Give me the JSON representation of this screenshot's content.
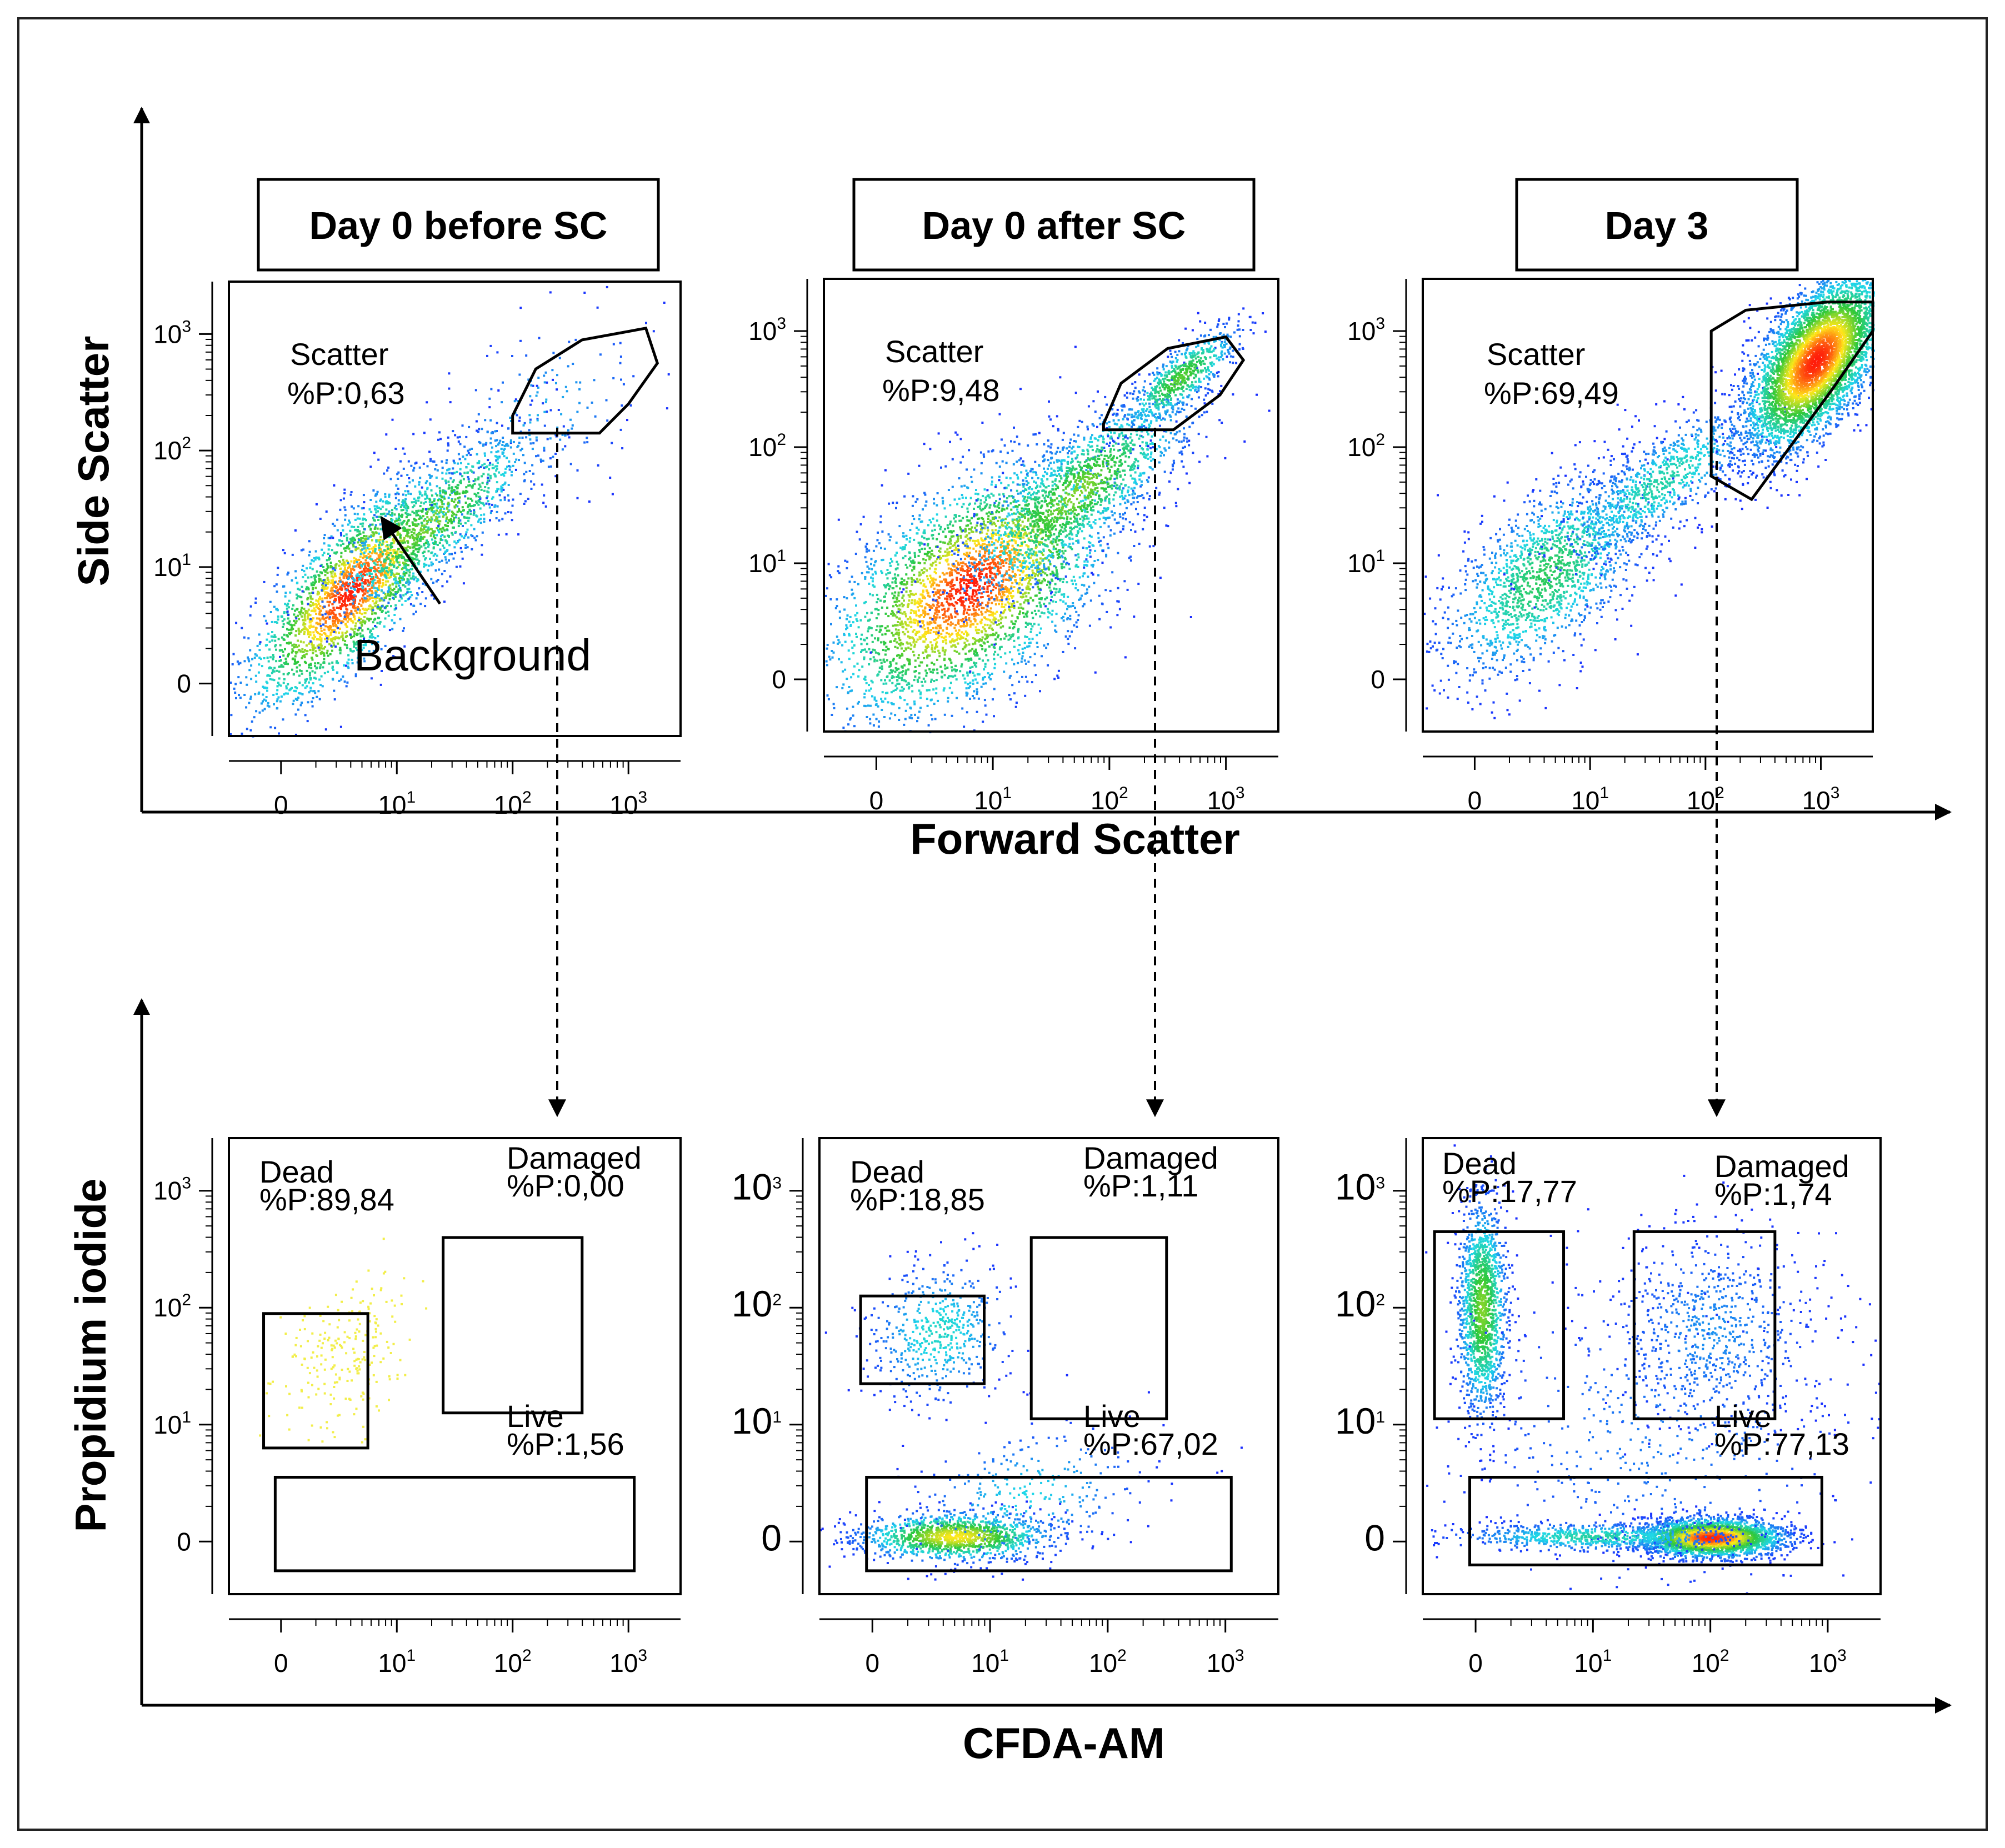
{
  "chart_data": {
    "type": "scatter",
    "kind": "flow-cytometry density dot plots",
    "colors": {
      "low": "#1a2cff",
      "mid_low": "#1fd7e8",
      "mid": "#2ec83a",
      "mid_high": "#ffe81a",
      "high": "#ff1a0a"
    },
    "tick_values": [
      "0",
      "10",
      "10",
      "10"
    ],
    "tick_exponents": [
      "",
      "1",
      "2",
      "3"
    ],
    "top_row": {
      "xlabel": "Forward Scatter",
      "ylabel": "Side Scatter",
      "panels": [
        {
          "title": "Day 0 before SC",
          "gate_label": "Scatter",
          "gate_value": "%P:0,63",
          "annotation": "Background",
          "population": [
            {
              "cx": 0.6,
              "cy": 0.8,
              "sx": 0.45,
              "sy": 0.5,
              "rho": 0.75,
              "n": 2400,
              "cmax": 1.0
            },
            {
              "cx": 1.3,
              "cy": 1.4,
              "sx": 0.45,
              "sy": 0.4,
              "rho": 0.8,
              "n": 1000,
              "cmax": 0.6
            },
            {
              "cx": 2.2,
              "cy": 2.3,
              "sx": 0.5,
              "sy": 0.45,
              "rho": 0.5,
              "n": 180,
              "cmax": 0.2
            }
          ]
        },
        {
          "title": "Day 0 after SC",
          "gate_label": "Scatter",
          "gate_value": "%P:9,48",
          "population": [
            {
              "cx": 0.8,
              "cy": 0.8,
              "sx": 0.6,
              "sy": 0.55,
              "rho": 0.55,
              "n": 3400,
              "cmax": 1.0
            },
            {
              "cx": 1.7,
              "cy": 1.6,
              "sx": 0.5,
              "sy": 0.45,
              "rho": 0.8,
              "n": 1500,
              "cmax": 0.6
            },
            {
              "cx": 2.6,
              "cy": 2.6,
              "sx": 0.25,
              "sy": 0.22,
              "rho": 0.8,
              "n": 600,
              "cmax": 0.55
            }
          ]
        },
        {
          "title": "Day 3",
          "gate_label": "Scatter",
          "gate_value": "%P:69,49",
          "population": [
            {
              "cx": 0.6,
              "cy": 0.9,
              "sx": 0.45,
              "sy": 0.45,
              "rho": 0.6,
              "n": 1600,
              "cmax": 0.45
            },
            {
              "cx": 1.6,
              "cy": 1.7,
              "sx": 0.45,
              "sy": 0.35,
              "rho": 0.8,
              "n": 900,
              "cmax": 0.35
            },
            {
              "cx": 2.95,
              "cy": 2.75,
              "sx": 0.3,
              "sy": 0.38,
              "rho": 0.6,
              "n": 5200,
              "cmax": 1.0
            }
          ]
        }
      ]
    },
    "bottom_row": {
      "xlabel": "CFDA-AM",
      "ylabel": "Propidium iodide",
      "panels": [
        {
          "gates": [
            {
              "name": "Dead",
              "value": "%P:89,84"
            },
            {
              "name": "Damaged",
              "value": "%P:0,00"
            },
            {
              "name": "Live",
              "value": "%P:1,56"
            }
          ],
          "population": [
            {
              "cx": 0.55,
              "cy": 1.6,
              "sx": 0.3,
              "sy": 0.35,
              "rho": 0.4,
              "n": 230,
              "cmax": 0.62,
              "fixed_color": "#f2ee4a"
            }
          ]
        },
        {
          "gates": [
            {
              "name": "Dead",
              "value": "%P:18,85"
            },
            {
              "name": "Damaged",
              "value": "%P:1,11"
            },
            {
              "name": "Live",
              "value": "%P:67,02"
            }
          ],
          "population": [
            {
              "cx": 0.55,
              "cy": 1.8,
              "sx": 0.3,
              "sy": 0.3,
              "rho": 0.1,
              "n": 500,
              "cmax": 0.3
            },
            {
              "cx": 0.7,
              "cy": 0.05,
              "sx": 0.4,
              "sy": 0.1,
              "rho": 0.0,
              "n": 1300,
              "cmax": 0.75
            },
            {
              "cx": 1.3,
              "cy": 0.4,
              "sx": 0.5,
              "sy": 0.3,
              "rho": 0.3,
              "n": 300,
              "cmax": 0.25
            }
          ]
        },
        {
          "gates": [
            {
              "name": "Dead",
              "value": "%P:17,77"
            },
            {
              "name": "Damaged",
              "value": "%P:1,74"
            },
            {
              "name": "Live",
              "value": "%P:77,13"
            }
          ],
          "population": [
            {
              "cx": 0.05,
              "cy": 2.0,
              "sx": 0.1,
              "sy": 0.45,
              "rho": 0.0,
              "n": 1500,
              "cmax": 0.6
            },
            {
              "cx": 2.0,
              "cy": 0.04,
              "sx": 0.3,
              "sy": 0.08,
              "rho": 0.0,
              "n": 2800,
              "cmax": 1.0
            },
            {
              "cx": 1.0,
              "cy": 0.05,
              "sx": 0.6,
              "sy": 0.06,
              "rho": 0.0,
              "n": 700,
              "cmax": 0.35
            },
            {
              "cx": 2.0,
              "cy": 1.8,
              "sx": 0.45,
              "sy": 0.45,
              "rho": 0.0,
              "n": 700,
              "cmax": 0.15
            },
            {
              "cx": 1.5,
              "cy": 0.9,
              "sx": 0.9,
              "sy": 0.7,
              "rho": 0.0,
              "n": 500,
              "cmax": 0.12
            }
          ]
        }
      ]
    }
  }
}
